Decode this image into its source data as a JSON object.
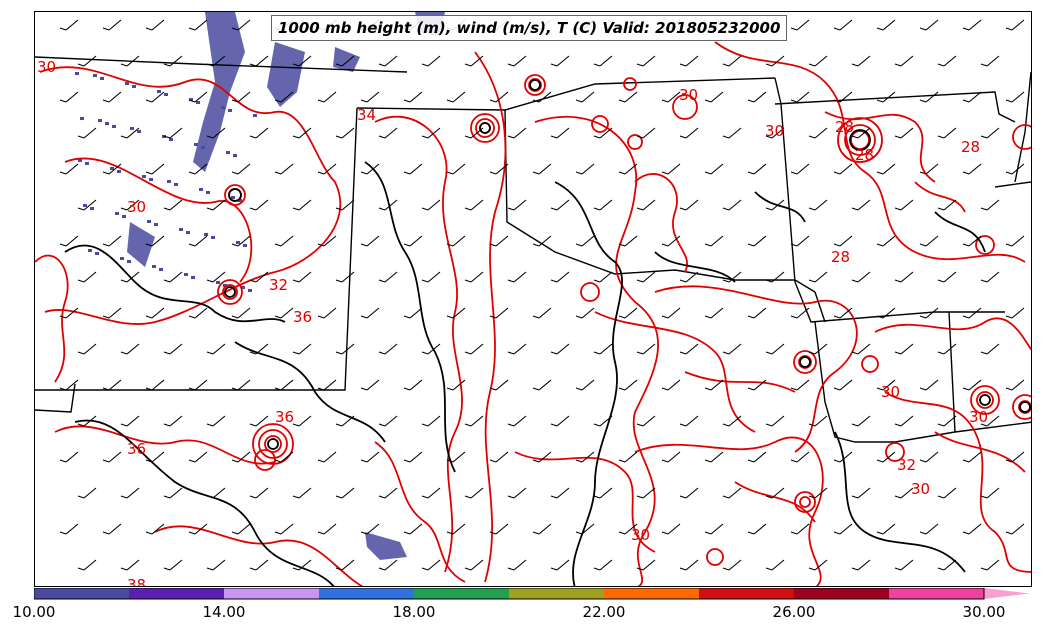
{
  "title": "1000 mb height (m), wind (m/s), T (C) Valid: 201805232000",
  "colorbar": {
    "tick_labels": [
      "10.00",
      "14.00",
      "18.00",
      "22.00",
      "26.00",
      "30.00"
    ],
    "colors": [
      "#4a4aa0",
      "#5a1fb0",
      "#c896f0",
      "#3070e0",
      "#20a050",
      "#a0a020",
      "#ff6a00",
      "#d01010",
      "#a00020",
      "#f040a0",
      "#f8a0d0"
    ],
    "range": [
      10,
      31
    ]
  },
  "contour_labels": [
    "30",
    "34",
    "32",
    "30",
    "28",
    "28",
    "28",
    "30",
    "32",
    "36",
    "36",
    "30",
    "30",
    "30",
    "38",
    "30",
    "28",
    "36",
    "30"
  ],
  "colors": {
    "temperature_contour": "#e00000",
    "height_contour": "#000000",
    "borders": "#000000",
    "precip_shading": "#4a4aa0",
    "wind_barbs": "#000000"
  }
}
